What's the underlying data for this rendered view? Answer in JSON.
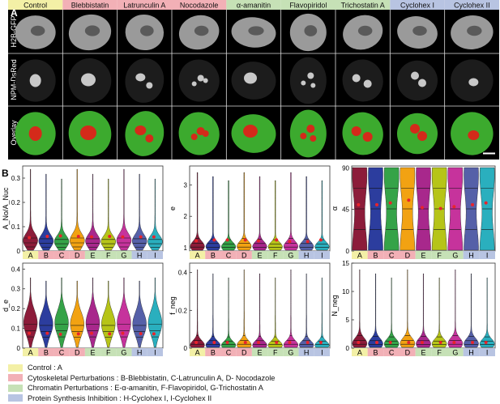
{
  "panel_labels": {
    "a": "A",
    "b": "B"
  },
  "conditions": [
    {
      "name": "Control",
      "group": "control"
    },
    {
      "name": "Blebbistatin",
      "group": "cytoskeletal"
    },
    {
      "name": "Latrunculin A",
      "group": "cytoskeletal"
    },
    {
      "name": "Nocodazole",
      "group": "cytoskeletal"
    },
    {
      "name": "α-amanitin",
      "group": "chromatin"
    },
    {
      "name": "Flavopiridol",
      "group": "chromatin"
    },
    {
      "name": "Trichostatin A",
      "group": "chromatin"
    },
    {
      "name": "Cyclohex I",
      "group": "protein"
    },
    {
      "name": "Cyclohex II",
      "group": "protein"
    }
  ],
  "row_labels": [
    "H2B-GFP",
    "NPM-DsRed",
    "Overlay"
  ],
  "category_letters": [
    "A",
    "B",
    "C",
    "D",
    "E",
    "F",
    "G",
    "H",
    "I"
  ],
  "colors": {
    "control": "#f3f0a6",
    "cytoskeletal": "#f2b0b6",
    "chromatin": "#c6e1b6",
    "protein": "#b8c4e2",
    "violins": [
      "#8c1c3a",
      "#2c3d9e",
      "#35a348",
      "#f2a212",
      "#a8288c",
      "#b6c418",
      "#c6339c",
      "#5560a8",
      "#2aafbe"
    ],
    "mean_marker": "#e8242c",
    "nucleolus": "#d42a1a",
    "nucleoplasm": "#3caa2e"
  },
  "legend": [
    {
      "group": "control",
      "text": "Control : A"
    },
    {
      "group": "cytoskeletal",
      "text": "Cytoskeletal Perturbations : B-Blebbistatin, C-Latrunculin A, D- Nocodazole"
    },
    {
      "group": "chromatin",
      "text": "Chromatin Perturbations : E-α-amanitin, F-Flavopiridol, G-Trichostatin A"
    },
    {
      "group": "protein",
      "text": "Protein Synthesis Inhibition : H-Cyclohex I, I-Cyclohex II"
    }
  ],
  "chart_data": [
    {
      "type": "violin",
      "ylabel": "A_No/A_Nuc",
      "yticks": [
        "0",
        "0.1",
        "0.2",
        "0.3"
      ],
      "ylim": [
        0,
        0.35
      ],
      "categories": [
        "A",
        "B",
        "C",
        "D",
        "E",
        "F",
        "G",
        "H",
        "I"
      ],
      "means": [
        0.055,
        0.06,
        0.062,
        0.06,
        0.058,
        0.06,
        0.058,
        0.058,
        0.058
      ]
    },
    {
      "type": "violin",
      "ylabel": "e",
      "yticks": [
        "1",
        "2",
        "3"
      ],
      "ylim": [
        0.9,
        3.6
      ],
      "categories": [
        "A",
        "B",
        "C",
        "D",
        "E",
        "F",
        "G",
        "H",
        "I"
      ],
      "means": [
        1.22,
        1.25,
        1.25,
        1.25,
        1.22,
        1.25,
        1.2,
        1.2,
        1.25
      ]
    },
    {
      "type": "violin",
      "ylabel": "α",
      "yticks": [
        "0",
        "45",
        "90"
      ],
      "ylim": [
        0,
        92
      ],
      "categories": [
        "A",
        "B",
        "C",
        "D",
        "E",
        "F",
        "G",
        "H",
        "I"
      ],
      "means": [
        50,
        50,
        52,
        55,
        47,
        46,
        48,
        50,
        52
      ]
    },
    {
      "type": "violin",
      "ylabel": "d_e",
      "yticks": [
        "0",
        "0.1",
        "0.2",
        "0.3",
        "0.4"
      ],
      "ylim": [
        0,
        0.43
      ],
      "categories": [
        "A",
        "B",
        "C",
        "D",
        "E",
        "F",
        "G",
        "H",
        "I"
      ],
      "means": [
        0.075,
        0.075,
        0.07,
        0.072,
        0.075,
        0.072,
        0.075,
        0.073,
        0.072
      ]
    },
    {
      "type": "violin",
      "ylabel": "f_neg",
      "yticks": [
        "0",
        "0.2",
        "0.4"
      ],
      "ylim": [
        0,
        0.45
      ],
      "categories": [
        "A",
        "B",
        "C",
        "D",
        "E",
        "F",
        "G",
        "H",
        "I"
      ],
      "means": [
        0.03,
        0.03,
        0.03,
        0.03,
        0.03,
        0.03,
        0.03,
        0.03,
        0.03
      ]
    },
    {
      "type": "violin",
      "ylabel": "N_neg",
      "yticks": [
        "0",
        "5",
        "10",
        "15"
      ],
      "ylim": [
        0,
        15
      ],
      "categories": [
        "A",
        "B",
        "C",
        "D",
        "E",
        "F",
        "G",
        "H",
        "I"
      ],
      "means": [
        1,
        1,
        1,
        1,
        1,
        1,
        1,
        1,
        1
      ]
    }
  ]
}
